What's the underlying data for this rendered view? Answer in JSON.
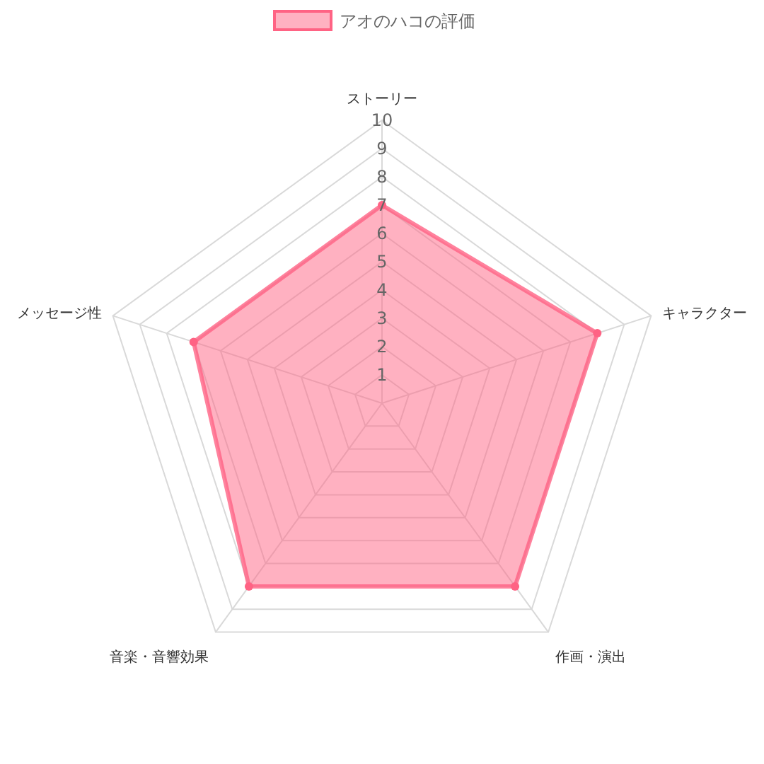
{
  "chart_data": {
    "type": "radar",
    "categories": [
      "ストーリー",
      "キャラクター",
      "作画・演出",
      "音楽・音響効果",
      "メッセージ性"
    ],
    "series": [
      {
        "name": "アオのハコの評価",
        "color": "#ff6384",
        "values": [
          7,
          8,
          8,
          8,
          7
        ]
      }
    ],
    "ylim": [
      0,
      10
    ],
    "yticks": [
      1,
      2,
      3,
      4,
      5,
      6,
      7,
      8,
      9,
      10
    ],
    "legend": "top",
    "marker": "circle",
    "grid": true
  }
}
